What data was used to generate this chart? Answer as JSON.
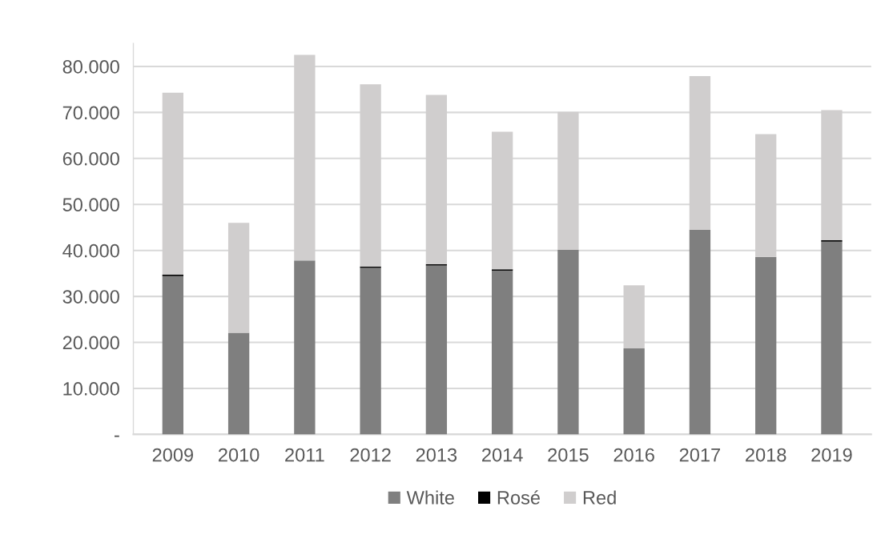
{
  "chart_data": {
    "type": "bar",
    "stacked": true,
    "categories": [
      "2009",
      "2010",
      "2011",
      "2012",
      "2013",
      "2014",
      "2015",
      "2016",
      "2017",
      "2018",
      "2019"
    ],
    "series": [
      {
        "name": "White",
        "color": "#7f7f7f",
        "values": [
          34400,
          22100,
          37800,
          36200,
          36700,
          35600,
          40100,
          18700,
          44500,
          38600,
          41900
        ]
      },
      {
        "name": "Rosé",
        "color": "#000000",
        "values": [
          300,
          null,
          null,
          300,
          300,
          300,
          null,
          null,
          null,
          null,
          300
        ]
      },
      {
        "name": "Red",
        "color": "#d0cece",
        "values": [
          39600,
          23900,
          44700,
          39600,
          36800,
          29900,
          30000,
          13700,
          33400,
          26700,
          28300
        ]
      }
    ],
    "ylim": [
      0,
      85000
    ],
    "yticks": [
      {
        "value": 0,
        "label": "-"
      },
      {
        "value": 10000,
        "label": "10.000"
      },
      {
        "value": 20000,
        "label": "20.000"
      },
      {
        "value": 30000,
        "label": "30.000"
      },
      {
        "value": 40000,
        "label": "40.000"
      },
      {
        "value": 50000,
        "label": "50.000"
      },
      {
        "value": 60000,
        "label": "60.000"
      },
      {
        "value": 70000,
        "label": "70.000"
      },
      {
        "value": 80000,
        "label": "80.000"
      }
    ],
    "grid": "y",
    "legend": "bottom"
  }
}
